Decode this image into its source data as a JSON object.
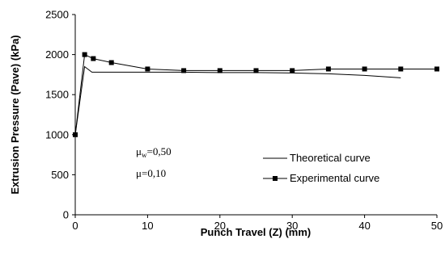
{
  "chart_data": {
    "type": "line",
    "xlabel": "Punch Travel (Z) (mm)",
    "ylabel": "Extrusion Pressure (Pave) (kPa)",
    "xlim": [
      0,
      50
    ],
    "ylim": [
      0,
      2500
    ],
    "x_ticks": [
      "0",
      "10",
      "20",
      "30",
      "40",
      "50"
    ],
    "y_ticks": [
      "0",
      "500",
      "1000",
      "1500",
      "2000",
      "2500"
    ],
    "grid": false,
    "legend_position": "right",
    "annotations": [
      {
        "symbol": "μ",
        "sub": "w",
        "text": "=0,50"
      },
      {
        "symbol": "μ",
        "sub": "",
        "text": "=0,10"
      }
    ],
    "series": [
      {
        "name": "Theoretical curve",
        "marker": "none",
        "color": "#000000",
        "x": [
          0,
          1.3,
          2.3,
          5,
          10,
          15,
          20,
          25,
          30,
          35,
          40,
          45
        ],
        "y": [
          1000,
          1850,
          1780,
          1780,
          1780,
          1780,
          1775,
          1775,
          1770,
          1760,
          1740,
          1710
        ]
      },
      {
        "name": "Experimental curve",
        "marker": "square",
        "color": "#000000",
        "x": [
          0,
          1.3,
          2.5,
          5,
          10,
          15,
          20,
          25,
          30,
          35,
          40,
          45,
          50
        ],
        "y": [
          1000,
          2000,
          1950,
          1900,
          1820,
          1800,
          1800,
          1800,
          1800,
          1820,
          1820,
          1820,
          1820
        ]
      }
    ]
  }
}
